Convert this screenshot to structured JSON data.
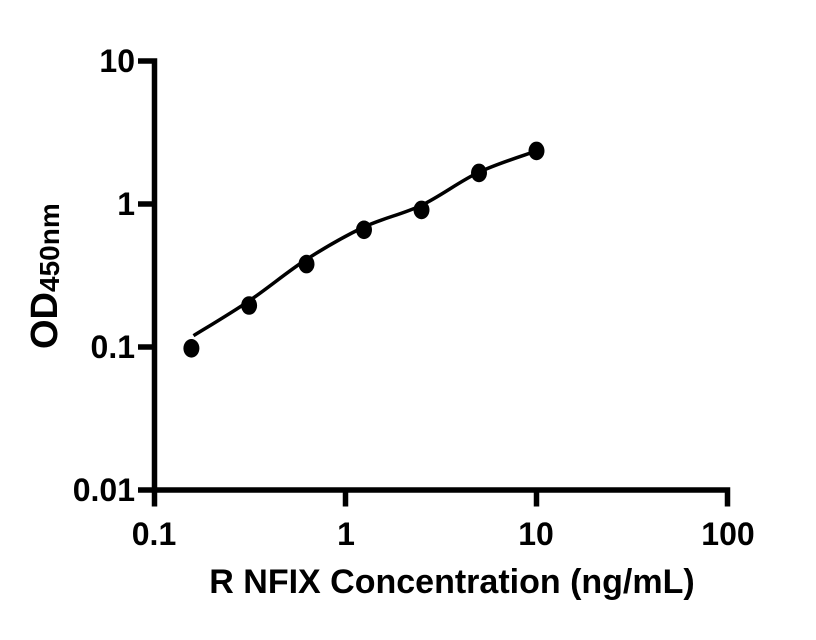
{
  "figure": {
    "background": "#ffffff",
    "ink_color": "#000000"
  },
  "chart_data": {
    "type": "scatter",
    "title": "",
    "xlabel": "R NFIX Concentration (ng/mL)",
    "ylabel_main": "OD",
    "ylabel_subscript": "450nm",
    "x_scale": "log",
    "y_scale": "log",
    "xlim": [
      0.1,
      100
    ],
    "ylim": [
      0.01,
      10
    ],
    "x_tick_values": [
      0.1,
      1,
      10,
      100
    ],
    "x_tick_labels": [
      "0.1",
      "1",
      "10",
      "100"
    ],
    "y_tick_values": [
      10,
      1,
      0.1,
      0.01
    ],
    "y_tick_labels": [
      "10",
      "1",
      "0.1",
      "0.01"
    ],
    "grid": false,
    "legend": null,
    "marker_color": "#000000",
    "line_color": "#000000",
    "series": [
      {
        "name": "standard-points",
        "type": "scatter",
        "marker": "filled-circle",
        "x": [
          0.156,
          0.313,
          0.625,
          1.25,
          2.5,
          5,
          10
        ],
        "y": [
          0.098,
          0.195,
          0.38,
          0.66,
          0.91,
          1.65,
          2.35
        ]
      },
      {
        "name": "fit-line",
        "type": "line",
        "x": [
          0.16,
          0.313,
          0.625,
          1.25,
          2.5,
          5,
          10
        ],
        "y": [
          0.12,
          0.21,
          0.41,
          0.69,
          0.98,
          1.67,
          2.35
        ]
      }
    ]
  }
}
